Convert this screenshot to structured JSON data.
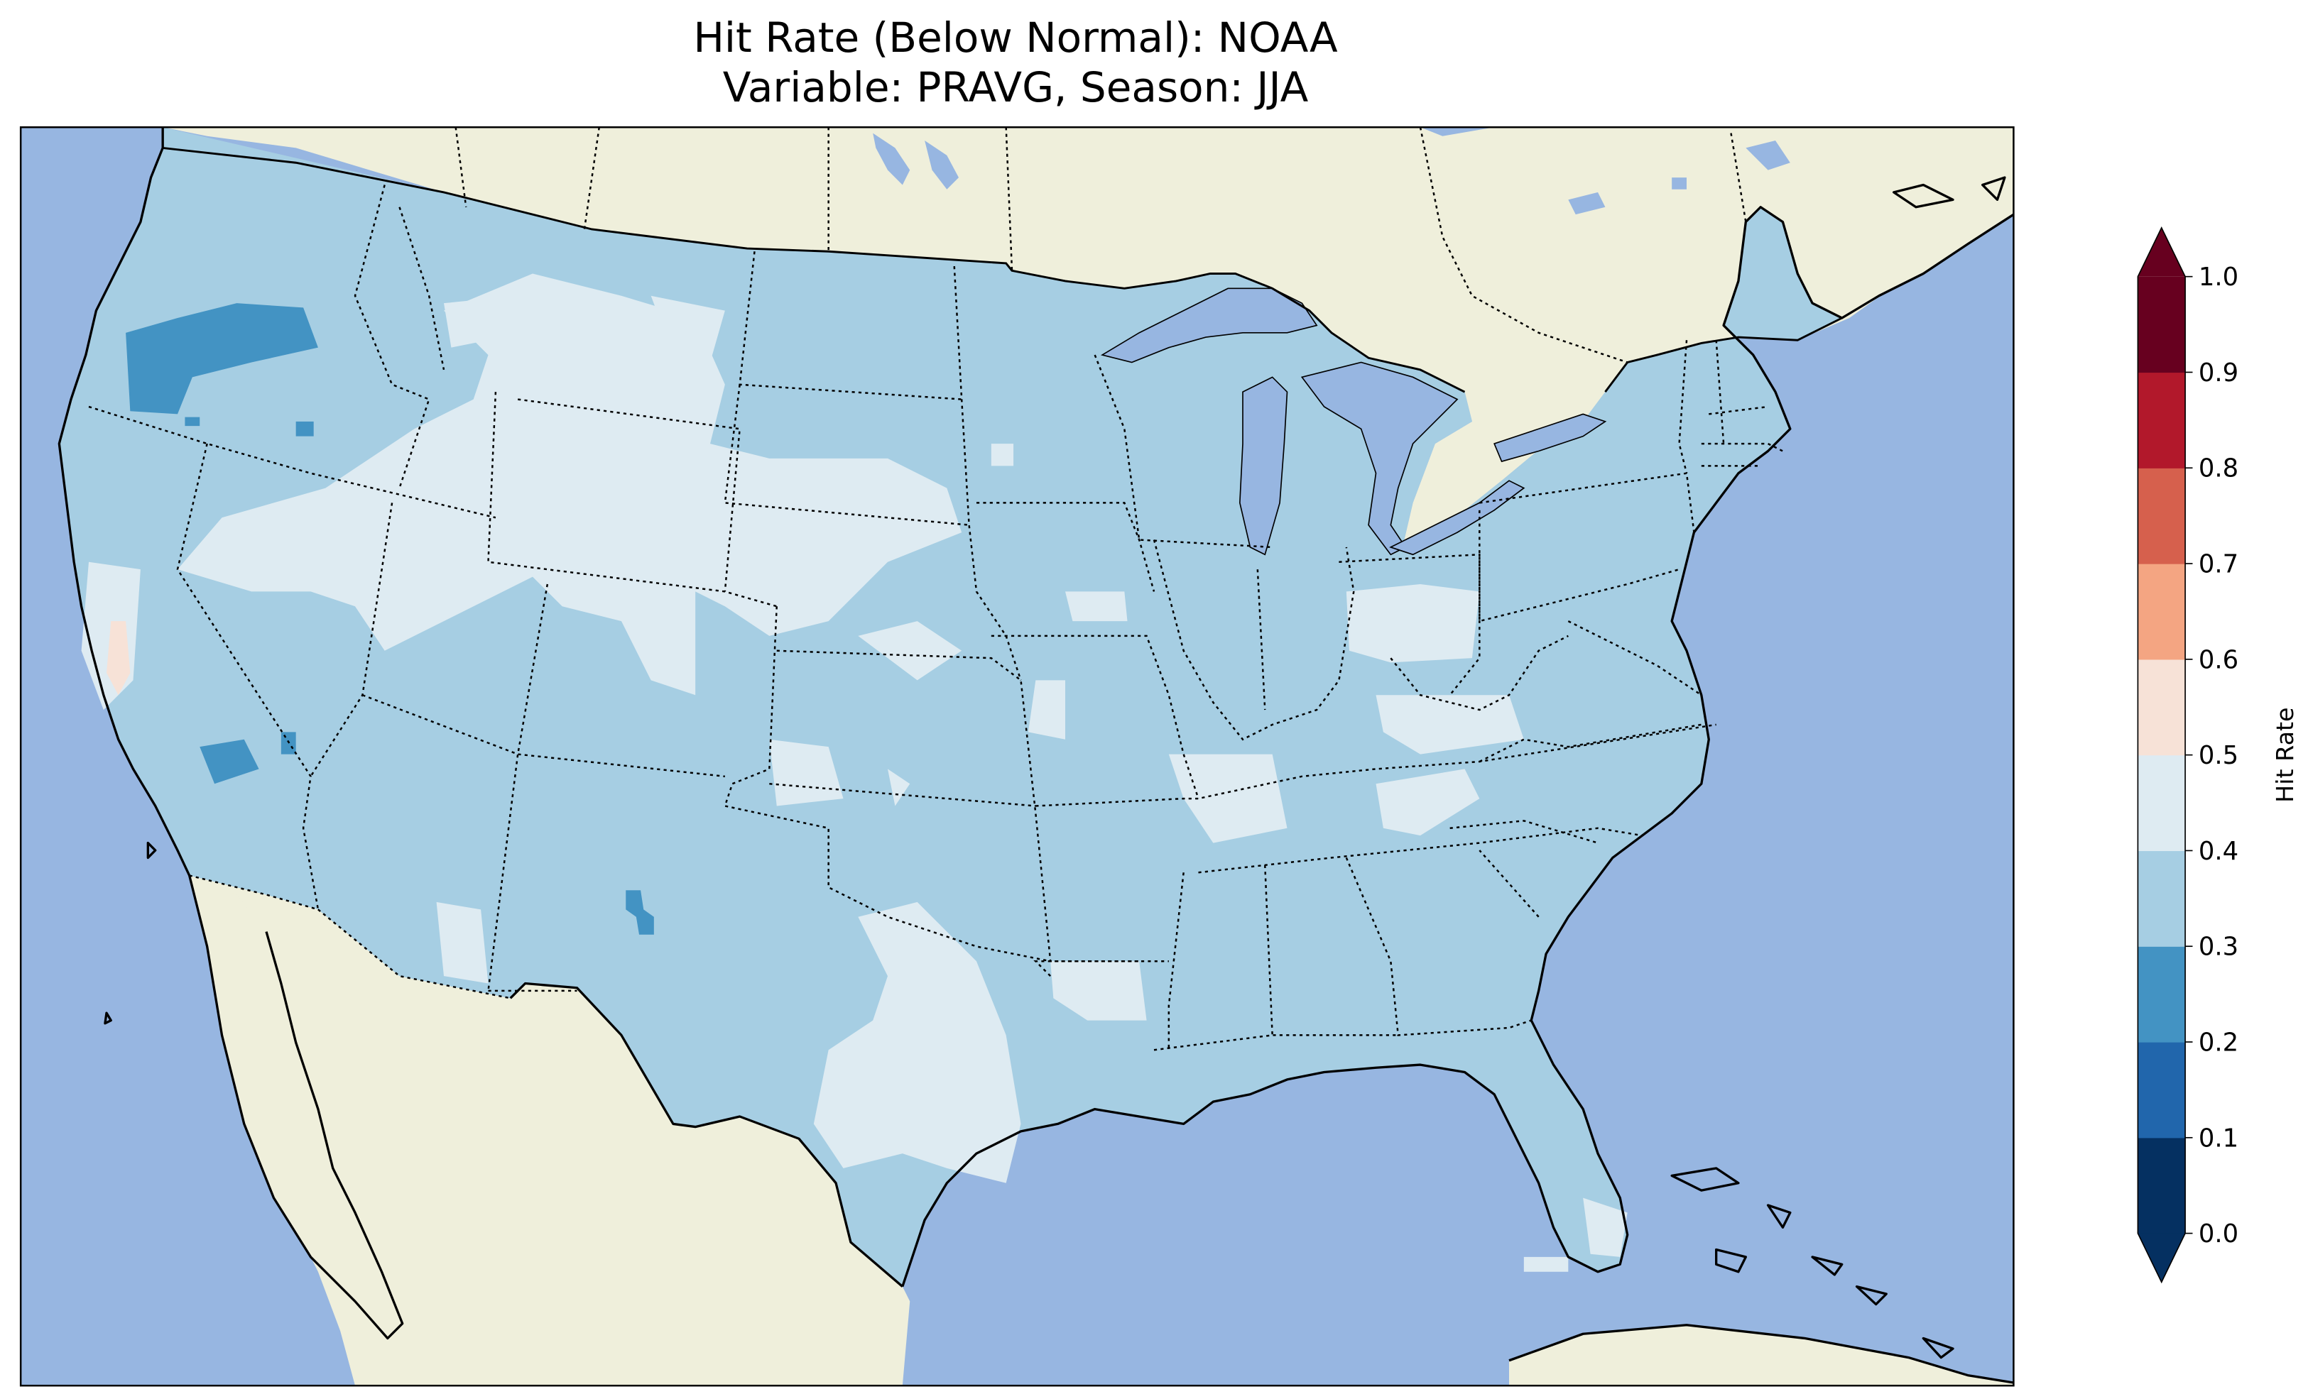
{
  "title": {
    "line1": "Hit Rate (Below Normal): NOAA",
    "line2": "Variable: PRAVG, Season: JJA"
  },
  "colorbar": {
    "label": "Hit Rate",
    "ticks": [
      "0.0",
      "0.1",
      "0.2",
      "0.3",
      "0.4",
      "0.5",
      "0.6",
      "0.7",
      "0.8",
      "0.9",
      "1.0"
    ],
    "colors": [
      "#053061",
      "#2166ac",
      "#4393c3",
      "#a6cee3",
      "#deebf2",
      "#f7e2d7",
      "#f4a582",
      "#d6604d",
      "#b2182b",
      "#67001f"
    ],
    "extend_under_color": "#053061",
    "extend_over_color": "#67001f"
  },
  "map_colors": {
    "ocean": "#97b6e1",
    "land": "#efefdb",
    "range_0_3_0_4": "#a6cee3",
    "range_0_4_0_5": "#deebf2",
    "range_0_2_0_3": "#4393c3",
    "range_0_5_0_6": "#f7e2d7"
  },
  "map_data": {
    "region": "Contiguous United States",
    "dominant_range": "0.3-0.4",
    "light_areas_0_4_0_5": [
      "Wyoming",
      "Montana",
      "Nevada",
      "Utah",
      "Colorado",
      "South Dakota",
      "Nebraska",
      "West Texas",
      "Ohio",
      "Kentucky",
      "Tennessee",
      "Arkansas",
      "Mississippi",
      "Florida"
    ],
    "dark_areas_0_2_0_3": [
      "Oregon",
      "California",
      "New Mexico"
    ],
    "warm_areas_0_5_0_6": [
      "Northern California coast"
    ]
  }
}
